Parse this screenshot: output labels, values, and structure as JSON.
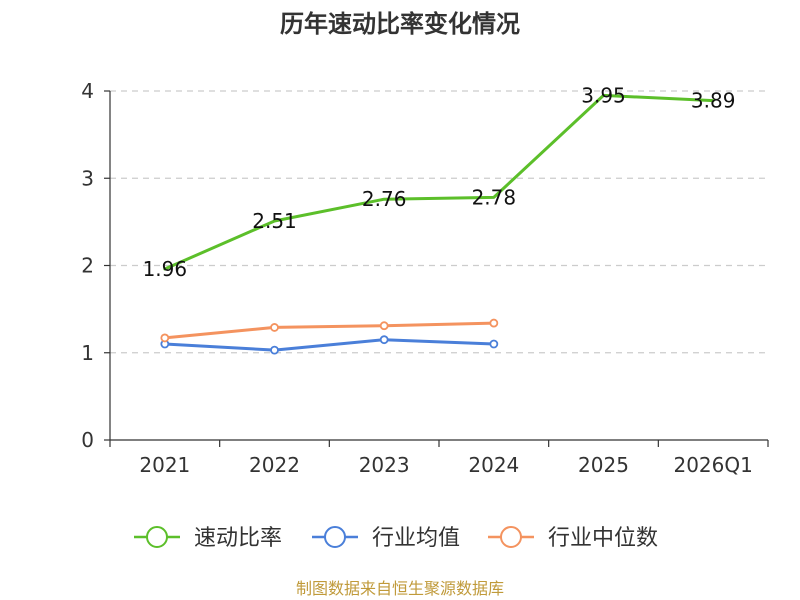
{
  "chart_data": {
    "type": "line",
    "title": "历年速动比率变化情况",
    "categories": [
      "2021",
      "2022",
      "2023",
      "2024",
      "2025",
      "2026Q1"
    ],
    "yticks": [
      "0",
      "1",
      "2",
      "3",
      "4"
    ],
    "ylim": [
      0,
      4
    ],
    "grid": true,
    "legend_position": "bottom",
    "series": [
      {
        "name": "速动比率",
        "color": "#5cbf2a",
        "values": [
          1.96,
          2.51,
          2.76,
          2.78,
          3.95,
          3.89
        ],
        "labels": [
          "1.96",
          "2.51",
          "2.76",
          "2.78",
          "3.95",
          "3.89"
        ],
        "show_points": false
      },
      {
        "name": "行业均值",
        "color": "#4a7fd9",
        "values": [
          1.1,
          1.03,
          1.15,
          1.1,
          null,
          null
        ],
        "show_points": true
      },
      {
        "name": "行业中位数",
        "color": "#f4935f",
        "values": [
          1.17,
          1.29,
          1.31,
          1.34,
          null,
          null
        ],
        "show_points": true
      }
    ],
    "source": "制图数据来自恒生聚源数据库"
  }
}
